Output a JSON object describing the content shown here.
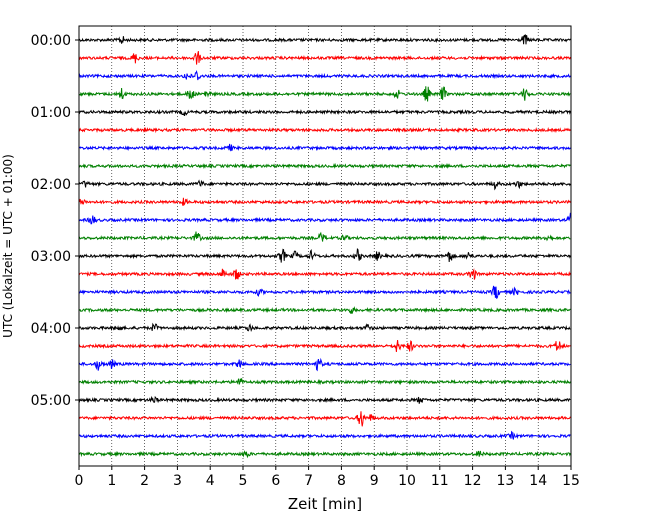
{
  "chart_data": {
    "type": "line",
    "chart_kind": "helicorder",
    "xlabel": "Zeit  [min]",
    "ylabel": "UTC (Lokalzeit = UTC + 01:00)",
    "xlim": [
      0,
      15
    ],
    "x_ticks": [
      "0",
      "1",
      "2",
      "3",
      "4",
      "5",
      "6",
      "7",
      "8",
      "9",
      "10",
      "11",
      "12",
      "13",
      "14",
      "15"
    ],
    "y_tick_labels": [
      "00:00",
      "01:00",
      "02:00",
      "03:00",
      "04:00",
      "05:00"
    ],
    "grid": "vertical dotted lines at each minute",
    "colors": [
      "#000000",
      "#ff0000",
      "#0000ff",
      "#008000"
    ],
    "traces": [
      {
        "start": "00:00",
        "color": "#000000",
        "events": [
          [
            1.3,
            4
          ],
          [
            13.6,
            5
          ]
        ]
      },
      {
        "start": "00:15",
        "color": "#ff0000",
        "events": [
          [
            1.7,
            5
          ],
          [
            3.6,
            7
          ]
        ]
      },
      {
        "start": "00:30",
        "color": "#0000ff",
        "events": [
          [
            3.3,
            4
          ],
          [
            3.6,
            5
          ]
        ]
      },
      {
        "start": "00:45",
        "color": "#008000",
        "events": [
          [
            1.3,
            6
          ],
          [
            3.4,
            7
          ],
          [
            3.9,
            4
          ],
          [
            9.7,
            4
          ],
          [
            10.6,
            8
          ],
          [
            11.1,
            7
          ],
          [
            13.6,
            6
          ]
        ]
      },
      {
        "start": "01:00",
        "color": "#000000",
        "events": [
          [
            3.2,
            3
          ]
        ]
      },
      {
        "start": "01:15",
        "color": "#ff0000",
        "events": []
      },
      {
        "start": "01:30",
        "color": "#0000ff",
        "events": [
          [
            4.6,
            3
          ]
        ]
      },
      {
        "start": "01:45",
        "color": "#008000",
        "events": []
      },
      {
        "start": "02:00",
        "color": "#000000",
        "events": [
          [
            0.2,
            3
          ],
          [
            3.7,
            3
          ],
          [
            12.7,
            4
          ],
          [
            13.4,
            3
          ]
        ]
      },
      {
        "start": "02:15",
        "color": "#ff0000",
        "events": [
          [
            0.1,
            3
          ],
          [
            3.2,
            3
          ]
        ]
      },
      {
        "start": "02:30",
        "color": "#0000ff",
        "events": [
          [
            0.4,
            5
          ],
          [
            15.0,
            7
          ]
        ]
      },
      {
        "start": "02:45",
        "color": "#008000",
        "events": [
          [
            3.6,
            6
          ],
          [
            7.4,
            5
          ],
          [
            8.1,
            3
          ],
          [
            14.3,
            3
          ]
        ]
      },
      {
        "start": "03:00",
        "color": "#000000",
        "events": [
          [
            6.2,
            7
          ],
          [
            6.6,
            4
          ],
          [
            7.1,
            5
          ],
          [
            8.5,
            6
          ],
          [
            9.1,
            4
          ],
          [
            11.3,
            6
          ],
          [
            11.9,
            4
          ]
        ]
      },
      {
        "start": "03:15",
        "color": "#ff0000",
        "events": [
          [
            4.4,
            5
          ],
          [
            4.8,
            6
          ],
          [
            12.0,
            7
          ]
        ]
      },
      {
        "start": "03:30",
        "color": "#0000ff",
        "events": [
          [
            5.5,
            3
          ],
          [
            12.7,
            8
          ],
          [
            13.3,
            3
          ]
        ]
      },
      {
        "start": "03:45",
        "color": "#008000",
        "events": [
          [
            8.3,
            3
          ]
        ]
      },
      {
        "start": "04:00",
        "color": "#000000",
        "events": [
          [
            1.2,
            3
          ],
          [
            2.3,
            4
          ],
          [
            5.2,
            3
          ],
          [
            8.8,
            3
          ]
        ]
      },
      {
        "start": "04:15",
        "color": "#ff0000",
        "events": [
          [
            9.7,
            6
          ],
          [
            10.1,
            5
          ],
          [
            14.6,
            6
          ]
        ]
      },
      {
        "start": "04:30",
        "color": "#0000ff",
        "events": [
          [
            0.6,
            6
          ],
          [
            1.0,
            4
          ],
          [
            4.9,
            4
          ],
          [
            7.3,
            7
          ]
        ]
      },
      {
        "start": "04:45",
        "color": "#008000",
        "events": [
          [
            4.9,
            4
          ]
        ]
      },
      {
        "start": "05:00",
        "color": "#000000",
        "events": [
          [
            2.3,
            3
          ],
          [
            10.4,
            3
          ]
        ]
      },
      {
        "start": "05:15",
        "color": "#ff0000",
        "events": [
          [
            8.6,
            10
          ],
          [
            8.9,
            3
          ]
        ]
      },
      {
        "start": "05:30",
        "color": "#0000ff",
        "events": [
          [
            13.2,
            3
          ]
        ]
      },
      {
        "start": "05:45",
        "color": "#008000",
        "events": [
          [
            5.1,
            3
          ],
          [
            12.2,
            3
          ]
        ]
      }
    ]
  }
}
